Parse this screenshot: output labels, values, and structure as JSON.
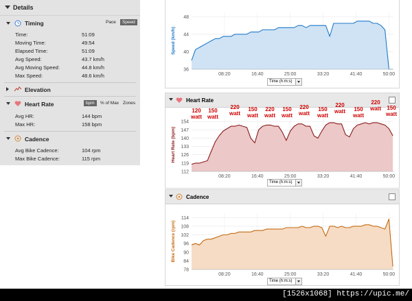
{
  "sidebar": {
    "title": "Details",
    "timing": {
      "title": "Timing",
      "toggle_pace": "Pace",
      "toggle_speed": "Speed",
      "rows": [
        {
          "label": "Time:",
          "value": "51:09"
        },
        {
          "label": "Moving Time:",
          "value": "49:54"
        },
        {
          "label": "Elapsed Time:",
          "value": "51:09"
        },
        {
          "label": "Avg Speed:",
          "value": "43.7 km/h"
        },
        {
          "label": "Avg Moving Speed:",
          "value": "44.8 km/h"
        },
        {
          "label": "Max Speed:",
          "value": "48.6 km/h"
        }
      ]
    },
    "elevation": {
      "title": "Elevation"
    },
    "heart_rate": {
      "title": "Heart Rate",
      "toggle_bpm": "bpm",
      "toggle_pct": "% of Max",
      "toggle_zones": "Zones",
      "rows": [
        {
          "label": "Avg HR:",
          "value": "144 bpm"
        },
        {
          "label": "Max HR:",
          "value": "158 bpm"
        }
      ]
    },
    "cadence": {
      "title": "Cadence",
      "rows": [
        {
          "label": "Avg Bike Cadence:",
          "value": "104 rpm"
        },
        {
          "label": "Max Bike Cadence:",
          "value": "115 rpm"
        }
      ]
    }
  },
  "panels": {
    "heart_rate_title": "Heart Rate",
    "cadence_title": "Cadence",
    "time_select": "Time (h:m:s)"
  },
  "annotations": [
    "120\nwatt",
    "150\nwatt",
    "220\nwatt",
    "150\nwatt",
    "220\nwatt",
    "150\nwatt",
    "220\nwatt",
    "150\nwatt",
    "220\nwatt",
    "150\nwatt",
    "220\nwatt",
    "150\nwatt"
  ],
  "footer": "[1526x1068] https://upic.me/",
  "colors": {
    "speed": "#1f78c8",
    "speed_fill": "#cfe3f5",
    "hr": "#8b1a1a",
    "hr_fill": "#ecc8c8",
    "cad": "#c46a10",
    "cad_fill": "#f6dcc4",
    "annotation": "#cc0000"
  },
  "chart_data": [
    {
      "type": "area",
      "ylabel": "Speed (km/h)",
      "xlabel": "Time (h:m:s)",
      "x_ticks": [
        "08:20",
        "16:40",
        "25:00",
        "33:20",
        "41:40",
        "50:00"
      ],
      "y_ticks": [
        36,
        40,
        44,
        48
      ],
      "ylim": [
        36,
        49
      ],
      "x_minutes": [
        0,
        1,
        2,
        3,
        4,
        5,
        6,
        7,
        8,
        9,
        10,
        11,
        12,
        13,
        14,
        15,
        16,
        17,
        18,
        19,
        20,
        21,
        22,
        23,
        24,
        25,
        26,
        27,
        28,
        29,
        30,
        31,
        32,
        33,
        34,
        35,
        36,
        37,
        38,
        39,
        40,
        41,
        42,
        43,
        44,
        45,
        46,
        47,
        48,
        49,
        50,
        51
      ],
      "values": [
        38,
        40.5,
        41,
        41.5,
        42,
        42.5,
        43,
        43,
        43.5,
        43.5,
        43.5,
        44,
        44,
        44,
        44,
        44.5,
        44.5,
        44.5,
        45,
        45,
        45,
        45,
        45.5,
        45.5,
        45.5,
        45.5,
        45.5,
        46,
        46,
        45.5,
        46,
        46,
        46,
        46,
        46,
        43.5,
        46.5,
        46.5,
        46.5,
        46.5,
        46.5,
        46.5,
        47,
        47,
        47,
        47,
        46.5,
        46.5,
        46,
        45,
        34.5,
        34.5
      ]
    },
    {
      "type": "area",
      "ylabel": "Heart Rate (bpm)",
      "xlabel": "Time (h:m:s)",
      "x_ticks": [
        "08:20",
        "16:40",
        "25:00",
        "33:20",
        "41:40",
        "50:00"
      ],
      "y_ticks": [
        112,
        119,
        126,
        133,
        140,
        147,
        154
      ],
      "ylim": [
        112,
        157
      ],
      "x_minutes": [
        0,
        1,
        2,
        3,
        4,
        5,
        6,
        7,
        8,
        9,
        10,
        11,
        12,
        13,
        14,
        15,
        16,
        17,
        18,
        19,
        20,
        21,
        22,
        23,
        24,
        25,
        26,
        27,
        28,
        29,
        30,
        31,
        32,
        33,
        34,
        35,
        36,
        37,
        38,
        39,
        40,
        41,
        42,
        43,
        44,
        45,
        46,
        47,
        48,
        49,
        50,
        51
      ],
      "values": [
        118,
        119,
        119,
        120,
        121,
        129,
        137,
        142,
        146,
        148,
        150,
        150,
        151,
        150,
        149,
        140,
        136,
        147,
        150,
        151,
        151,
        150,
        150,
        145,
        138,
        146,
        150,
        152,
        152,
        150,
        150,
        142,
        140,
        146,
        151,
        153,
        153,
        152,
        152,
        143,
        141,
        148,
        151,
        152,
        153,
        152,
        153,
        153,
        152,
        151,
        148,
        142
      ]
    },
    {
      "type": "area",
      "ylabel": "Bike Cadence (rpm)",
      "xlabel": "Time (h:m:s)",
      "x_ticks": [
        "08:20",
        "16:40",
        "25:00",
        "33:20",
        "41:40",
        "50:00"
      ],
      "y_ticks": [
        78,
        84,
        90,
        96,
        102,
        108,
        114
      ],
      "ylim": [
        78,
        117
      ],
      "x_minutes": [
        0,
        1,
        2,
        3,
        4,
        5,
        6,
        7,
        8,
        9,
        10,
        11,
        12,
        13,
        14,
        15,
        16,
        17,
        18,
        19,
        20,
        21,
        22,
        23,
        24,
        25,
        26,
        27,
        28,
        29,
        30,
        31,
        32,
        33,
        34,
        35,
        36,
        37,
        38,
        39,
        40,
        41,
        42,
        43,
        44,
        45,
        46,
        47,
        48,
        49,
        50,
        51
      ],
      "values": [
        95,
        96,
        95,
        98,
        99,
        99,
        100,
        101,
        102,
        102,
        103,
        103,
        104,
        104,
        104,
        104,
        105,
        105,
        105,
        106,
        106,
        106,
        106,
        106,
        107,
        107,
        107,
        107,
        108,
        107,
        107,
        108,
        108,
        107,
        101,
        108,
        108,
        107,
        108,
        107,
        107,
        108,
        108,
        108,
        109,
        109,
        108,
        108,
        107,
        106,
        113,
        80
      ]
    }
  ]
}
